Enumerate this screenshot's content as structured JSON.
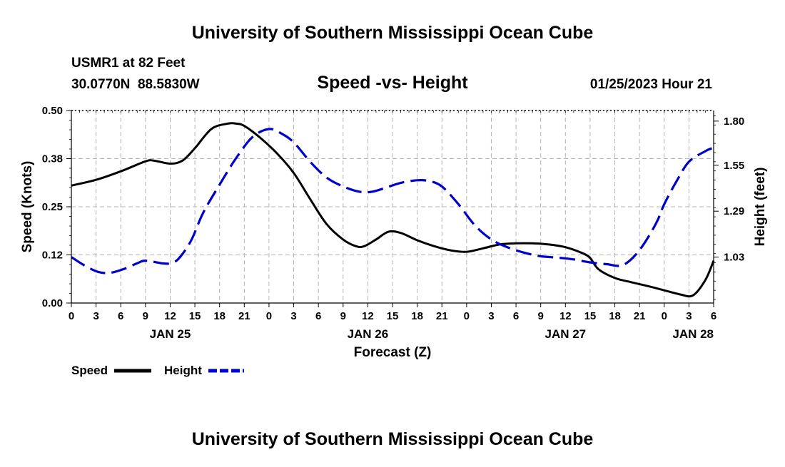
{
  "header": {
    "title": "University of Southern Mississippi Ocean Cube",
    "station": "USMR1 at 82 Feet",
    "coords": "30.0770N  88.5830W",
    "subtitle": "Speed -vs- Height",
    "datetime": "01/25/2023 Hour 21"
  },
  "footer": {
    "title": "University of Southern Mississippi Ocean Cube"
  },
  "colors": {
    "speed": "#000000",
    "height": "#0000cc",
    "grid": "#b4b4b4"
  },
  "chart_data": {
    "type": "line",
    "title": "Speed -vs- Height",
    "xlabel": "Forecast (Z)",
    "ylabel": "Speed (Knots)",
    "y2label": "Height (feet)",
    "xlim": [
      0,
      78
    ],
    "ylim": [
      0,
      0.5
    ],
    "y2lim": [
      0.77,
      1.86
    ],
    "x_tick_values": [
      0,
      3,
      6,
      9,
      12,
      15,
      18,
      21,
      24,
      27,
      30,
      33,
      36,
      39,
      42,
      45,
      48,
      51,
      54,
      57,
      60,
      63,
      66,
      69,
      72,
      75,
      78
    ],
    "x_tick_labels": [
      "0",
      "3",
      "6",
      "9",
      "12",
      "15",
      "18",
      "21",
      "0",
      "3",
      "6",
      "9",
      "12",
      "15",
      "18",
      "21",
      "0",
      "3",
      "6",
      "9",
      "12",
      "15",
      "18",
      "21",
      "0",
      "3",
      "6"
    ],
    "day_labels": [
      {
        "x": 12,
        "label": "JAN 25"
      },
      {
        "x": 36,
        "label": "JAN 26"
      },
      {
        "x": 60,
        "label": "JAN 27"
      },
      {
        "x": 78,
        "label": "JAN 28"
      }
    ],
    "y_ticks": [
      0.0,
      0.125,
      0.25,
      0.375,
      0.5
    ],
    "y_tick_labels": [
      "0.00",
      "0.12",
      "0.25",
      "0.38",
      "0.50"
    ],
    "y2_ticks": [
      1.03,
      1.29,
      1.55,
      1.8
    ],
    "y2_tick_labels": [
      "1.03",
      "1.29",
      "1.55",
      "1.80"
    ],
    "legend_position": "bottom-left",
    "series": [
      {
        "name": "Speed",
        "axis": "left",
        "style": "solid",
        "x": [
          0,
          3,
          6,
          9,
          10,
          12,
          13.5,
          15,
          17,
          19,
          20,
          21,
          23,
          25,
          27,
          29,
          31,
          33,
          34.5,
          35.5,
          37,
          38.5,
          40,
          42,
          44,
          46,
          48,
          50,
          52,
          54,
          56,
          58,
          60,
          62,
          63,
          64,
          66,
          68,
          70,
          72,
          74,
          75.5,
          77,
          78
        ],
        "values": [
          0.305,
          0.32,
          0.342,
          0.368,
          0.37,
          0.362,
          0.37,
          0.402,
          0.452,
          0.466,
          0.466,
          0.46,
          0.428,
          0.388,
          0.338,
          0.27,
          0.205,
          0.165,
          0.148,
          0.147,
          0.165,
          0.185,
          0.182,
          0.163,
          0.148,
          0.137,
          0.133,
          0.142,
          0.152,
          0.155,
          0.155,
          0.152,
          0.145,
          0.13,
          0.117,
          0.088,
          0.065,
          0.054,
          0.044,
          0.033,
          0.022,
          0.02,
          0.06,
          0.11
        ]
      },
      {
        "name": "Height",
        "axis": "right",
        "style": "dashed",
        "x": [
          0,
          1.5,
          3,
          4,
          5,
          6.5,
          8,
          9,
          11,
          12,
          13,
          14.5,
          16,
          18,
          20,
          22,
          24,
          25.5,
          27,
          29,
          31,
          33,
          35,
          36.5,
          38,
          40,
          42,
          43.5,
          45,
          47,
          49,
          51,
          53,
          55,
          57,
          59,
          61,
          63,
          65,
          67,
          69,
          71,
          72,
          73.5,
          75,
          77,
          78
        ],
        "values": [
          1.03,
          0.985,
          0.95,
          0.94,
          0.943,
          0.965,
          0.995,
          1.01,
          0.995,
          0.995,
          1.02,
          1.12,
          1.28,
          1.44,
          1.59,
          1.71,
          1.755,
          1.73,
          1.68,
          1.57,
          1.48,
          1.43,
          1.4,
          1.4,
          1.42,
          1.45,
          1.465,
          1.46,
          1.43,
          1.33,
          1.21,
          1.13,
          1.085,
          1.055,
          1.035,
          1.027,
          1.017,
          1.0,
          0.99,
          0.985,
          1.07,
          1.22,
          1.33,
          1.46,
          1.57,
          1.63,
          1.65
        ]
      }
    ]
  }
}
